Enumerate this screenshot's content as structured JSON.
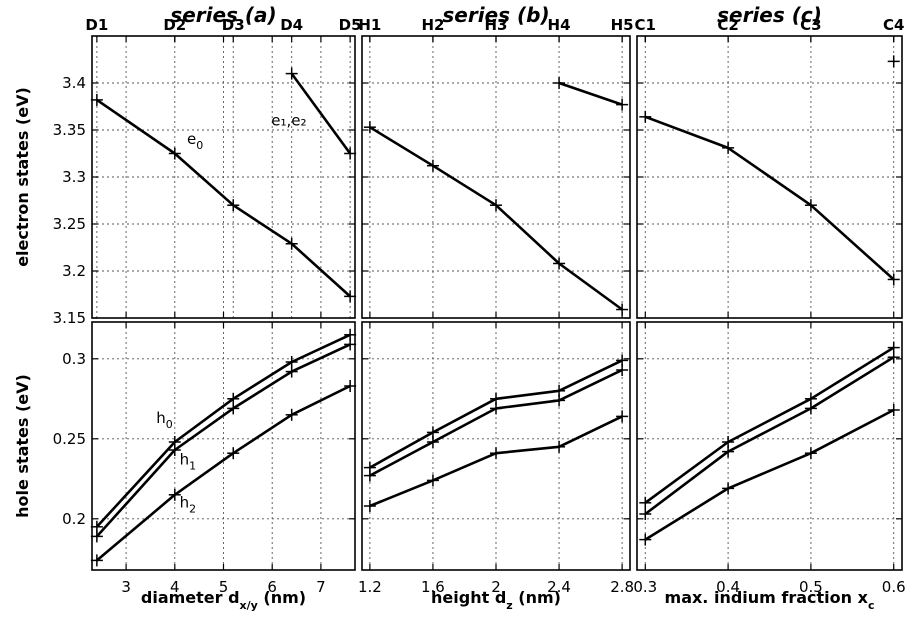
{
  "chart_data": [
    {
      "type": "line",
      "title": "series (a)",
      "row": "electron",
      "xlabel": "",
      "ylabel": "electron states  (eV)",
      "xlim": [
        2.3,
        7.7
      ],
      "ylim": [
        3.15,
        3.45
      ],
      "xticks": [
        3,
        4,
        5,
        6,
        7
      ],
      "yticks": [
        3.15,
        3.2,
        3.25,
        3.3,
        3.35,
        3.4
      ],
      "yticklabels": [
        "3.15",
        "3.2",
        "3.25",
        "3.3",
        "3.35",
        "3.4"
      ],
      "top_ticks": {
        "x": [
          2.4,
          4.0,
          5.2,
          6.4,
          7.6
        ],
        "labels": [
          "D1",
          "D2",
          "D3",
          "D4",
          "D5"
        ]
      },
      "grid": true,
      "series": [
        {
          "x": [
            2.4,
            4.0,
            5.2,
            6.4,
            7.6
          ],
          "values": [
            3.382,
            3.325,
            3.27,
            3.229,
            3.173
          ]
        },
        {
          "x": [
            6.4,
            7.6
          ],
          "values": [
            3.41,
            3.325
          ]
        }
      ],
      "annotations": [
        {
          "base": "e",
          "sub": "0",
          "x": 4.25,
          "y": 3.335
        },
        {
          "text": "e₁,e₂",
          "x": 5.98,
          "y": 3.355
        }
      ]
    },
    {
      "type": "line",
      "title": "series (b)",
      "row": "electron",
      "xlabel": "",
      "ylabel": "",
      "xlim": [
        1.15,
        2.85
      ],
      "ylim": [
        3.15,
        3.45
      ],
      "xticks": [
        1.2,
        1.6,
        2.0,
        2.4,
        2.8
      ],
      "yticks": [
        3.15,
        3.2,
        3.25,
        3.3,
        3.35,
        3.4
      ],
      "top_ticks": {
        "x": [
          1.2,
          1.6,
          2.0,
          2.4,
          2.8
        ],
        "labels": [
          "H1",
          "H2",
          "H3",
          "H4",
          "H5"
        ]
      },
      "grid": true,
      "series": [
        {
          "x": [
            1.2,
            1.6,
            2.0,
            2.4,
            2.8
          ],
          "values": [
            3.353,
            3.312,
            3.27,
            3.208,
            3.159
          ]
        },
        {
          "x": [
            2.4,
            2.8
          ],
          "values": [
            3.4,
            3.377
          ]
        }
      ]
    },
    {
      "type": "line",
      "title": "series (c)",
      "row": "electron",
      "xlabel": "",
      "ylabel": "",
      "xlim": [
        0.29,
        0.61
      ],
      "ylim": [
        3.15,
        3.45
      ],
      "xticks": [
        0.3,
        0.4,
        0.5,
        0.6
      ],
      "yticks": [
        3.15,
        3.2,
        3.25,
        3.3,
        3.35,
        3.4
      ],
      "top_ticks": {
        "x": [
          0.3,
          0.4,
          0.5,
          0.6
        ],
        "labels": [
          "C1",
          "C2",
          "C3",
          "C4"
        ]
      },
      "grid": true,
      "series": [
        {
          "x": [
            0.3,
            0.4,
            0.5,
            0.6
          ],
          "values": [
            3.364,
            3.331,
            3.27,
            3.191
          ]
        },
        {
          "x": [
            0.6
          ],
          "values": [
            3.423
          ]
        }
      ]
    },
    {
      "type": "line",
      "row": "hole",
      "xlabel": "diameter d",
      "xlabel_sub": "x/y",
      "xlabel_tail": " (nm)",
      "ylabel": "hole states (eV)",
      "xlim": [
        2.3,
        7.7
      ],
      "ylim": [
        0.168,
        0.323
      ],
      "xticks": [
        3,
        4,
        5,
        6,
        7
      ],
      "xticklabels": [
        "3",
        "4",
        "5",
        "6",
        "7"
      ],
      "yticks": [
        0.2,
        0.25,
        0.3
      ],
      "yticklabels": [
        "0.2",
        "0.25",
        "0.3"
      ],
      "grid": true,
      "series": [
        {
          "x": [
            2.4,
            4.0,
            5.2,
            6.4,
            7.6
          ],
          "values": [
            0.195,
            0.248,
            0.275,
            0.298,
            0.315
          ]
        },
        {
          "x": [
            2.4,
            4.0,
            5.2,
            6.4,
            7.6
          ],
          "values": [
            0.189,
            0.243,
            0.269,
            0.292,
            0.309
          ]
        },
        {
          "x": [
            2.4,
            4.0,
            5.2,
            6.4,
            7.6
          ],
          "values": [
            0.174,
            0.215,
            0.241,
            0.265,
            0.283
          ]
        }
      ],
      "annotations": [
        {
          "base": "h",
          "sub": "0",
          "x": 3.62,
          "y": 0.26
        },
        {
          "base": "h",
          "sub": "1",
          "x": 4.1,
          "y": 0.234
        },
        {
          "base": "h",
          "sub": "2",
          "x": 4.1,
          "y": 0.207
        }
      ]
    },
    {
      "type": "line",
      "row": "hole",
      "xlabel": "height d",
      "xlabel_sub": "z",
      "xlabel_tail": " (nm)",
      "ylabel": "",
      "xlim": [
        1.15,
        2.85
      ],
      "ylim": [
        0.168,
        0.323
      ],
      "xticks": [
        1.2,
        1.6,
        2.0,
        2.4,
        2.8
      ],
      "xticklabels": [
        "1.2",
        "1.6",
        "2",
        "2.4",
        "2.8"
      ],
      "yticks": [
        0.2,
        0.25,
        0.3
      ],
      "grid": true,
      "series": [
        {
          "x": [
            1.2,
            1.6,
            2.0,
            2.4,
            2.8
          ],
          "values": [
            0.232,
            0.254,
            0.275,
            0.28,
            0.299
          ]
        },
        {
          "x": [
            1.2,
            1.6,
            2.0,
            2.4,
            2.8
          ],
          "values": [
            0.227,
            0.248,
            0.269,
            0.274,
            0.293
          ]
        },
        {
          "x": [
            1.2,
            1.6,
            2.0,
            2.4,
            2.8
          ],
          "values": [
            0.208,
            0.224,
            0.241,
            0.245,
            0.264
          ]
        }
      ]
    },
    {
      "type": "line",
      "row": "hole",
      "xlabel": "max. indium fraction x",
      "xlabel_sub": "c",
      "xlabel_tail": "",
      "ylabel": "",
      "xlim": [
        0.29,
        0.61
      ],
      "ylim": [
        0.168,
        0.323
      ],
      "xticks": [
        0.3,
        0.4,
        0.5,
        0.6
      ],
      "xticklabels": [
        "0.3",
        "0.4",
        "0.5",
        "0.6"
      ],
      "yticks": [
        0.2,
        0.25,
        0.3
      ],
      "grid": true,
      "series": [
        {
          "x": [
            0.3,
            0.4,
            0.5,
            0.6
          ],
          "values": [
            0.21,
            0.248,
            0.275,
            0.307
          ]
        },
        {
          "x": [
            0.3,
            0.4,
            0.5,
            0.6
          ],
          "values": [
            0.203,
            0.242,
            0.269,
            0.301
          ]
        },
        {
          "x": [
            0.3,
            0.4,
            0.5,
            0.6
          ],
          "values": [
            0.187,
            0.219,
            0.241,
            0.268
          ]
        }
      ]
    }
  ]
}
